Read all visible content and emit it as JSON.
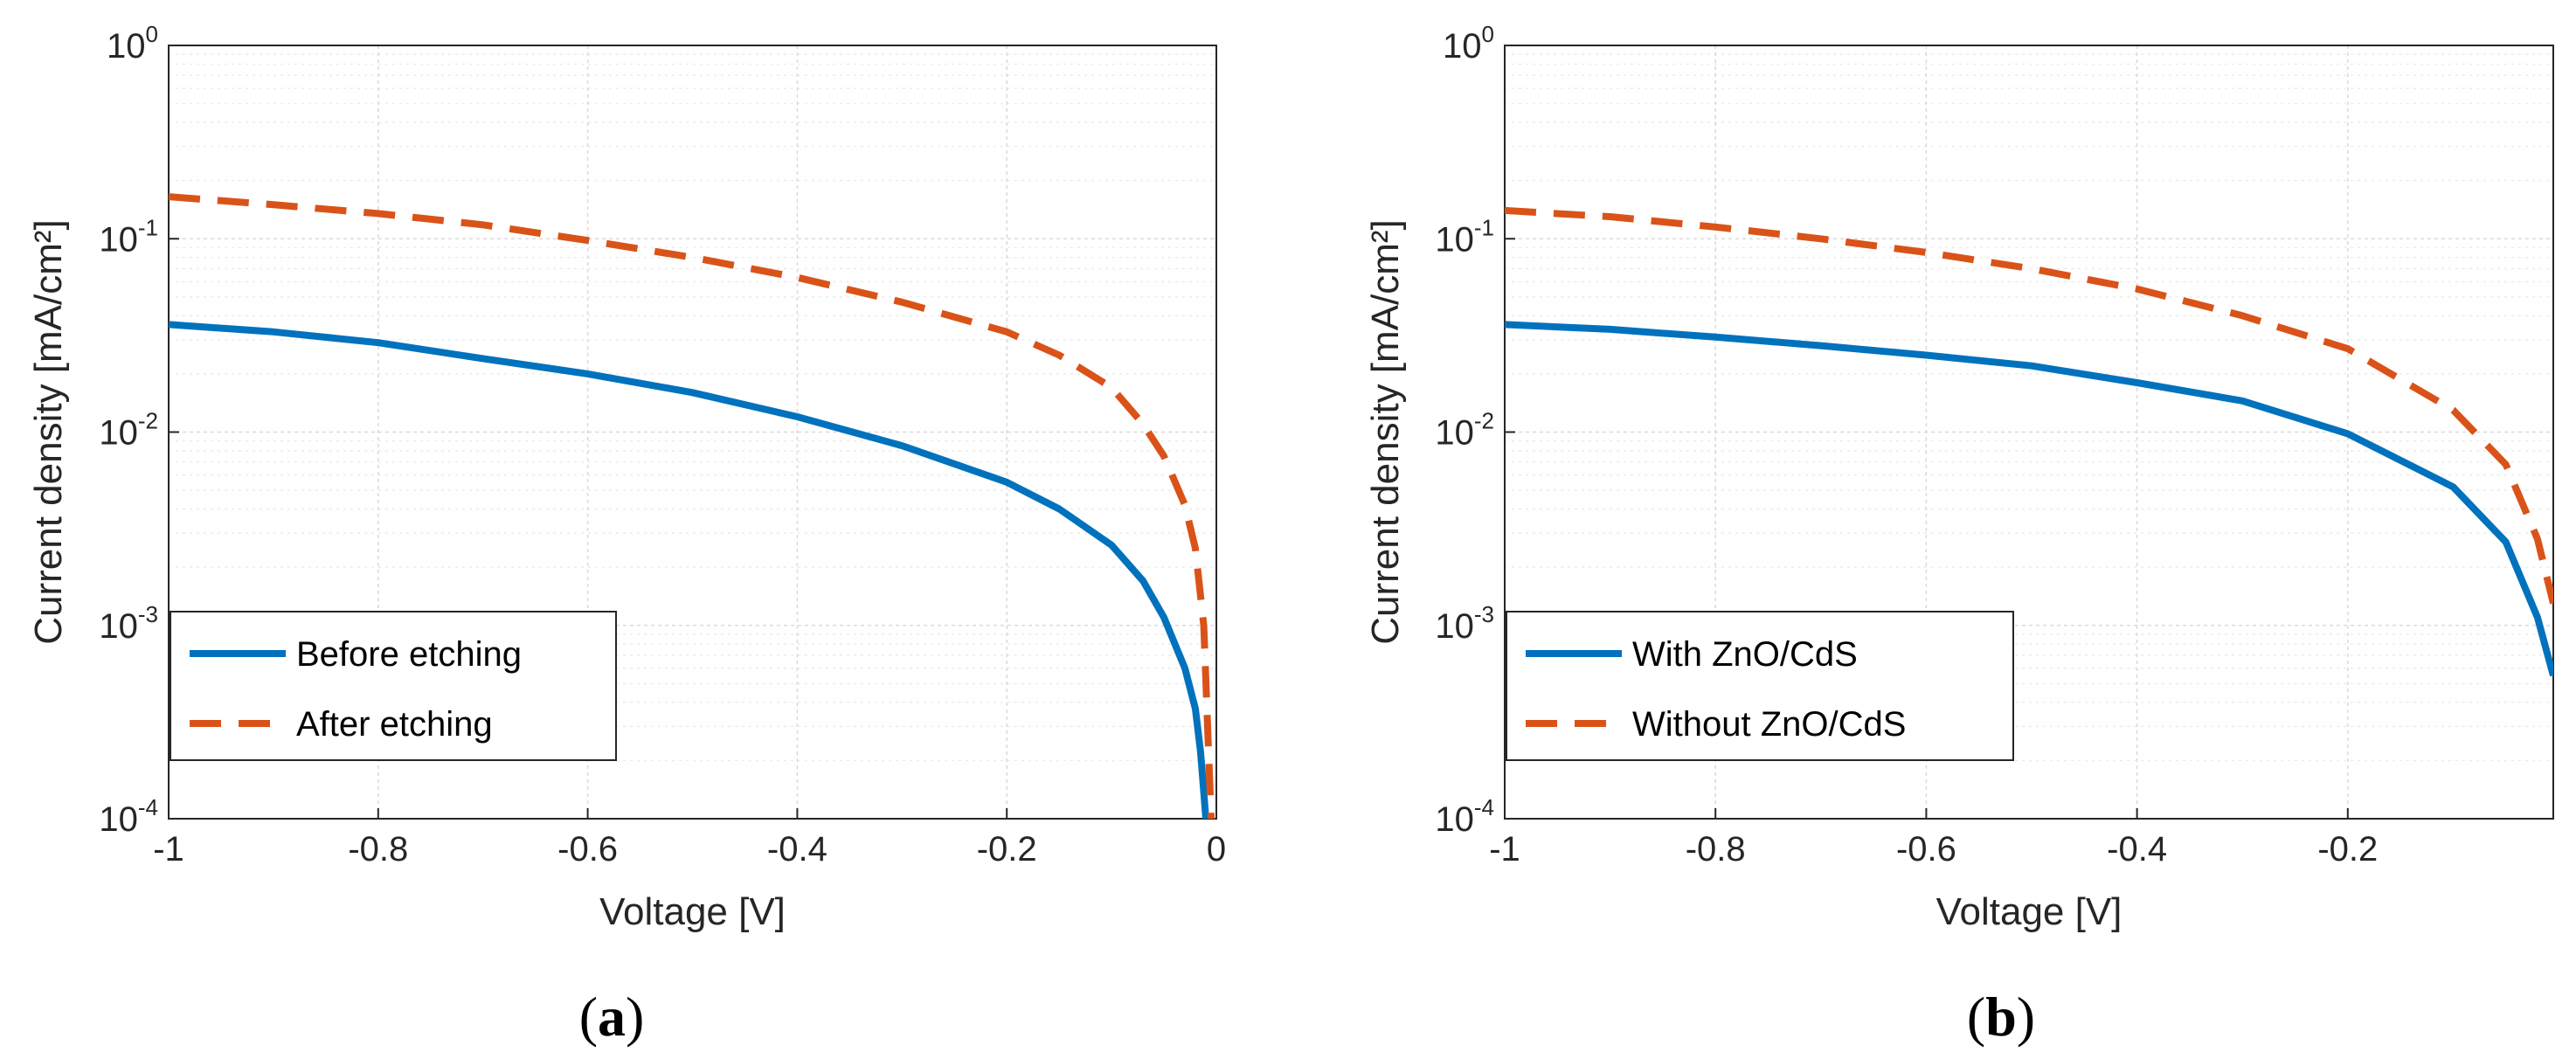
{
  "chart_data": [
    {
      "type": "line",
      "panel": "a",
      "caption": {
        "open": "(",
        "letter": "a",
        "close": ")"
      },
      "xlabel": "Voltage [V]",
      "ylabel": "Current density [mA/cm²]",
      "yscale": "log",
      "xlim": [
        -1,
        0
      ],
      "ylim": [
        0.0001,
        1
      ],
      "xticks": [
        -1,
        -0.8,
        -0.6,
        -0.4,
        -0.2,
        0
      ],
      "xtick_labels": [
        "-1",
        "-0.8",
        "-0.6",
        "-0.4",
        "-0.2",
        "0"
      ],
      "yticks": [
        {
          "base": "10",
          "exp": "-4"
        },
        {
          "base": "10",
          "exp": "-3"
        },
        {
          "base": "10",
          "exp": "-2"
        },
        {
          "base": "10",
          "exp": "-1"
        },
        {
          "base": "10",
          "exp": "0"
        }
      ],
      "grid": true,
      "legend_position": "bottom-left",
      "series": [
        {
          "name": "Before etching",
          "color": "#0072BD",
          "style": "solid",
          "x": [
            -1,
            -0.9,
            -0.8,
            -0.7,
            -0.6,
            -0.5,
            -0.4,
            -0.3,
            -0.2,
            -0.15,
            -0.1,
            -0.07,
            -0.05,
            -0.03,
            -0.02,
            -0.015,
            -0.01
          ],
          "y": [
            0.036,
            0.033,
            0.029,
            0.024,
            0.02,
            0.016,
            0.012,
            0.0085,
            0.0055,
            0.004,
            0.0026,
            0.0017,
            0.0011,
            0.0006,
            0.00037,
            0.00022,
            0.0001
          ]
        },
        {
          "name": "After etching",
          "color": "#D95319",
          "style": "dashed",
          "x": [
            -1,
            -0.9,
            -0.8,
            -0.7,
            -0.6,
            -0.5,
            -0.4,
            -0.3,
            -0.2,
            -0.15,
            -0.1,
            -0.07,
            -0.05,
            -0.03,
            -0.02,
            -0.012,
            -0.005
          ],
          "y": [
            0.165,
            0.15,
            0.135,
            0.118,
            0.098,
            0.08,
            0.063,
            0.047,
            0.033,
            0.025,
            0.017,
            0.011,
            0.0075,
            0.0042,
            0.0025,
            0.001,
            0.0001
          ]
        }
      ]
    },
    {
      "type": "line",
      "panel": "b",
      "caption": {
        "open": "(",
        "letter": "b",
        "close": ")"
      },
      "xlabel": "Voltage [V]",
      "ylabel": "Current density [mA/cm²]",
      "yscale": "log",
      "xlim": [
        -1,
        0
      ],
      "ylim": [
        0.0001,
        1
      ],
      "xticks": [
        -1,
        -0.8,
        -0.6,
        -0.4,
        -0.2
      ],
      "xtick_labels": [
        "-1",
        "-0.8",
        "-0.6",
        "-0.4",
        "-0.2"
      ],
      "yticks": [
        {
          "base": "10",
          "exp": "-4"
        },
        {
          "base": "10",
          "exp": "-3"
        },
        {
          "base": "10",
          "exp": "-2"
        },
        {
          "base": "10",
          "exp": "-1"
        },
        {
          "base": "10",
          "exp": "0"
        }
      ],
      "grid": true,
      "legend_position": "bottom-left",
      "series": [
        {
          "name": "With ZnO/CdS",
          "color": "#0072BD",
          "style": "solid",
          "x": [
            -1,
            -0.9,
            -0.8,
            -0.7,
            -0.6,
            -0.5,
            -0.4,
            -0.3,
            -0.2,
            -0.1,
            -0.05,
            -0.02,
            -0.005
          ],
          "y": [
            0.036,
            0.034,
            0.031,
            0.028,
            0.025,
            0.022,
            0.018,
            0.0145,
            0.0098,
            0.0052,
            0.0027,
            0.0011,
            0.00055
          ]
        },
        {
          "name": "Without ZnO/CdS",
          "color": "#D95319",
          "style": "dashed",
          "x": [
            -1,
            -0.9,
            -0.8,
            -0.7,
            -0.6,
            -0.5,
            -0.4,
            -0.3,
            -0.2,
            -0.1,
            -0.05,
            -0.02,
            -0.005
          ],
          "y": [
            0.14,
            0.13,
            0.115,
            0.1,
            0.085,
            0.07,
            0.055,
            0.04,
            0.027,
            0.013,
            0.0068,
            0.0028,
            0.0013
          ]
        }
      ]
    }
  ]
}
